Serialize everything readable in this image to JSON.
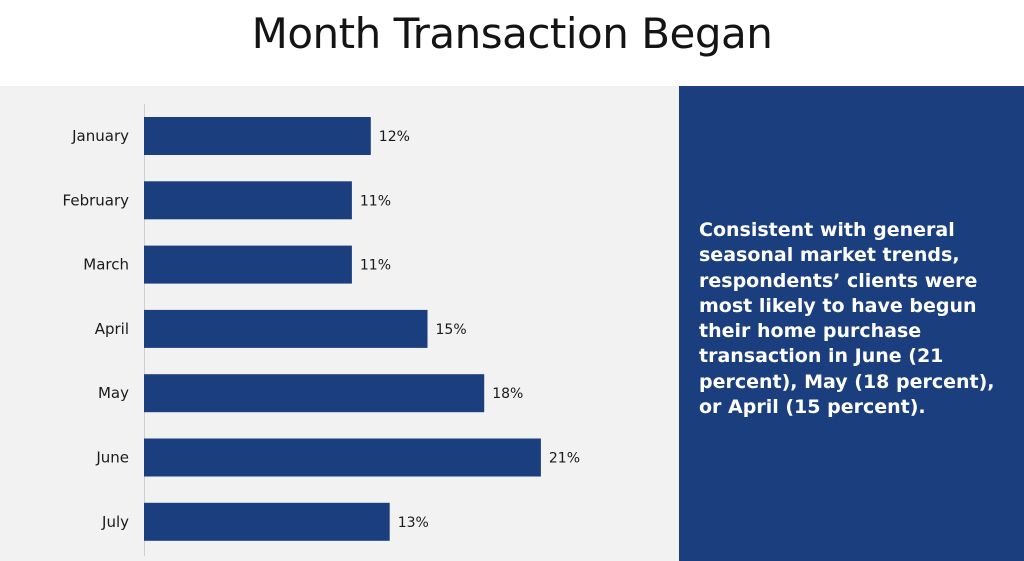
{
  "title": "Month Transaction Began",
  "side_note": "Consistent with general seasonal market trends, respondents’ clients were most likely to have begun their home purchase transaction in June (21 percent), May (18 percent), or April (15 percent).",
  "colors": {
    "bar": "#1b3f7e",
    "panel": "#1b3f7e",
    "chart_background": "#f2f2f2"
  },
  "chart_data": {
    "type": "bar",
    "orientation": "horizontal",
    "title": "",
    "xlabel": "",
    "ylabel": "",
    "categories": [
      "January",
      "February",
      "March",
      "April",
      "May",
      "June",
      "July"
    ],
    "values": [
      12,
      11,
      11,
      15,
      18,
      21,
      13
    ],
    "value_labels": [
      "12%",
      "11%",
      "11%",
      "15%",
      "18%",
      "21%",
      "13%"
    ],
    "unit": "%",
    "grid": false,
    "legend": "none"
  }
}
